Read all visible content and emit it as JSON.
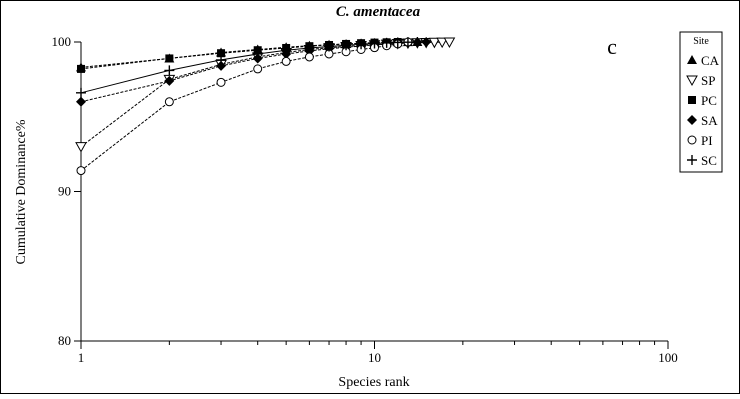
{
  "chart_data": {
    "type": "line",
    "title": "C. amentacea",
    "panel_label": "c",
    "xlabel": "Species rank",
    "ylabel": "Cumulative Dominance%",
    "x_scale": "log",
    "xlim": [
      1,
      100
    ],
    "ylim": [
      80,
      100
    ],
    "x_ticks": [
      1,
      10,
      100
    ],
    "x_tick_labels": [
      "1",
      "10",
      "100"
    ],
    "y_ticks": [
      80,
      90,
      100
    ],
    "y_tick_labels": [
      "80",
      "90",
      "100"
    ],
    "grid": false,
    "legend": {
      "title": "Site",
      "placement": "right"
    },
    "series": [
      {
        "name": "CA",
        "marker": "triangle-up",
        "x": [
          1,
          2,
          3,
          4,
          5,
          6,
          7,
          8,
          9,
          10,
          11,
          12,
          13,
          14
        ],
        "y": [
          98.3,
          98.9,
          99.3,
          99.5,
          99.65,
          99.75,
          99.82,
          99.87,
          99.91,
          99.94,
          99.96,
          99.98,
          99.99,
          100
        ]
      },
      {
        "name": "SP",
        "marker": "triangle-down",
        "x": [
          1,
          2,
          3,
          4,
          5,
          6,
          7,
          8,
          9,
          10,
          11,
          12,
          13,
          14,
          15,
          16,
          17,
          18
        ],
        "y": [
          93.0,
          97.5,
          98.5,
          99.0,
          99.3,
          99.5,
          99.62,
          99.7,
          99.77,
          99.82,
          99.86,
          99.9,
          99.93,
          99.95,
          99.97,
          99.98,
          99.99,
          100
        ]
      },
      {
        "name": "PC",
        "marker": "square",
        "x": [
          1,
          2,
          3,
          4,
          5,
          6,
          7,
          8,
          9,
          10,
          11,
          12
        ],
        "y": [
          98.2,
          98.9,
          99.25,
          99.45,
          99.6,
          99.72,
          99.8,
          99.87,
          99.92,
          99.96,
          99.98,
          100
        ]
      },
      {
        "name": "SA",
        "marker": "diamond",
        "x": [
          1,
          2,
          3,
          4,
          5,
          6,
          7,
          8,
          9,
          10,
          11,
          12,
          13,
          14,
          15
        ],
        "y": [
          96.0,
          97.4,
          98.4,
          98.9,
          99.2,
          99.4,
          99.55,
          99.65,
          99.73,
          99.8,
          99.86,
          99.91,
          99.95,
          99.98,
          100
        ]
      },
      {
        "name": "PI",
        "marker": "circle-open",
        "x": [
          1,
          2,
          3,
          4,
          5,
          6,
          7,
          8,
          9,
          10,
          11,
          12,
          13
        ],
        "y": [
          91.4,
          96.0,
          97.3,
          98.2,
          98.7,
          99.0,
          99.2,
          99.35,
          99.5,
          99.62,
          99.75,
          99.87,
          100
        ]
      },
      {
        "name": "SC",
        "marker": "plus",
        "x": [
          1,
          2,
          3,
          4,
          5,
          6,
          7,
          8,
          9,
          10,
          11,
          12,
          13,
          14
        ],
        "y": [
          96.6,
          98.1,
          98.8,
          99.2,
          99.45,
          99.6,
          99.7,
          99.78,
          99.85,
          99.9,
          99.94,
          99.97,
          99.99,
          100
        ]
      }
    ]
  }
}
